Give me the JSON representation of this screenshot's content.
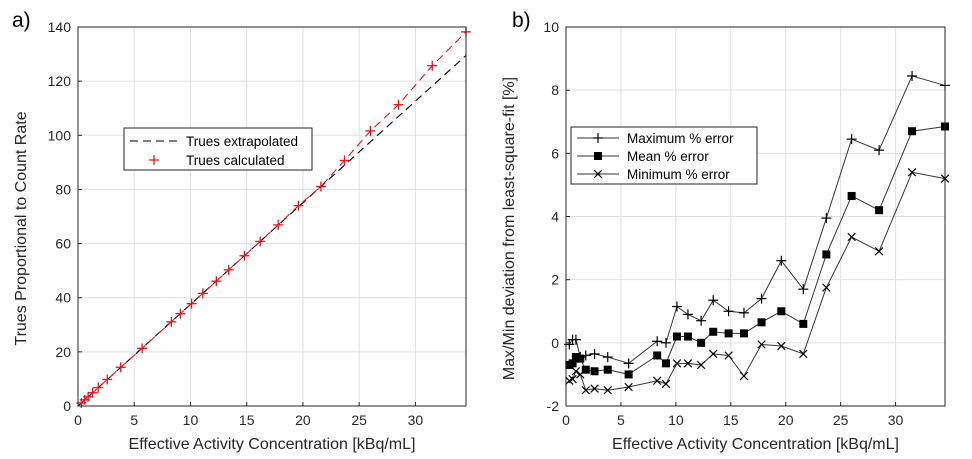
{
  "chart_data": [
    {
      "panel_label": "a)",
      "type": "line",
      "xlabel": "Effective Activity Concentration [kBq/mL]",
      "ylabel": "Trues Proportional to Count Rate",
      "xlim": [
        0,
        34.5
      ],
      "ylim": [
        0,
        140
      ],
      "xticks": [
        0,
        5,
        10,
        15,
        20,
        25,
        30
      ],
      "yticks": [
        0,
        20,
        40,
        60,
        80,
        100,
        120,
        140
      ],
      "grid": true,
      "legend_position": "upper-left inside",
      "series": [
        {
          "name": "Trues extrapolated",
          "style": "dashed-line",
          "color": "#000000",
          "x": [
            0,
            34.5
          ],
          "y": [
            0,
            129.5
          ]
        },
        {
          "name": "Trues calculated",
          "style": "dashed-line-plus-markers",
          "color": "#e8141e",
          "x": [
            0.3,
            0.6,
            0.9,
            1.3,
            1.8,
            2.6,
            3.8,
            5.7,
            8.3,
            9.1,
            10.1,
            11.1,
            12.3,
            13.4,
            14.8,
            16.2,
            17.8,
            19.6,
            21.6,
            23.7,
            26.0,
            28.5,
            31.5,
            34.5
          ],
          "y": [
            1.1,
            2.3,
            3.4,
            4.9,
            6.8,
            9.8,
            14.3,
            21.3,
            31.1,
            34.1,
            37.8,
            41.6,
            46.1,
            50.3,
            55.5,
            60.8,
            66.9,
            74.0,
            81.1,
            90.7,
            101.6,
            111.3,
            125.7,
            138.2
          ]
        }
      ]
    },
    {
      "panel_label": "b)",
      "type": "line",
      "xlabel": "Effective Activity Concentration [kBq/mL]",
      "ylabel": "Max/Min deviation from least-square-fit [%]",
      "xlim": [
        0,
        34.5
      ],
      "ylim": [
        -2,
        10
      ],
      "xticks": [
        0,
        5,
        10,
        15,
        20,
        25,
        30
      ],
      "yticks": [
        -2,
        0,
        2,
        4,
        6,
        8,
        10
      ],
      "grid": true,
      "legend_position": "upper-left inside",
      "x": [
        0.3,
        0.6,
        0.9,
        1.3,
        1.8,
        2.6,
        3.8,
        5.7,
        8.3,
        9.1,
        10.1,
        11.1,
        12.3,
        13.4,
        14.8,
        16.2,
        17.8,
        19.6,
        21.6,
        23.7,
        26.0,
        28.5,
        31.5,
        34.5
      ],
      "series": [
        {
          "name": "Maximum % error",
          "marker": "plus",
          "color": "#333333",
          "values": [
            -0.05,
            0.1,
            0.1,
            -0.45,
            -0.4,
            -0.35,
            -0.45,
            -0.65,
            0.05,
            0.0,
            1.15,
            0.9,
            0.7,
            1.35,
            1.0,
            0.95,
            1.4,
            2.6,
            1.7,
            3.95,
            6.45,
            6.1,
            8.45,
            8.15
          ]
        },
        {
          "name": "Mean % error",
          "marker": "square",
          "color": "#333333",
          "values": [
            -0.7,
            -0.65,
            -0.45,
            -0.5,
            -0.85,
            -0.9,
            -0.85,
            -1.0,
            -0.4,
            -0.65,
            0.2,
            0.2,
            0.0,
            0.35,
            0.3,
            0.3,
            0.65,
            1.0,
            0.6,
            2.8,
            4.65,
            4.2,
            6.7,
            6.85
          ]
        },
        {
          "name": "Minimum % error",
          "marker": "x",
          "color": "#333333",
          "values": [
            -1.2,
            -1.15,
            -0.9,
            -1.0,
            -1.5,
            -1.45,
            -1.5,
            -1.4,
            -1.2,
            -1.3,
            -0.65,
            -0.65,
            -0.7,
            -0.35,
            -0.4,
            -1.05,
            -0.05,
            -0.1,
            -0.35,
            1.75,
            3.35,
            2.9,
            5.4,
            5.2
          ]
        }
      ]
    }
  ]
}
